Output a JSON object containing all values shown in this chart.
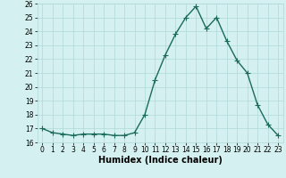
{
  "x": [
    0,
    1,
    2,
    3,
    4,
    5,
    6,
    7,
    8,
    9,
    10,
    11,
    12,
    13,
    14,
    15,
    16,
    17,
    18,
    19,
    20,
    21,
    22,
    23
  ],
  "y": [
    17.0,
    16.7,
    16.6,
    16.5,
    16.6,
    16.6,
    16.6,
    16.5,
    16.5,
    16.7,
    18.0,
    20.5,
    22.3,
    23.8,
    25.0,
    25.8,
    24.2,
    25.0,
    23.3,
    21.9,
    21.0,
    18.7,
    17.3,
    16.5
  ],
  "line_color": "#1a6b5a",
  "marker": "+",
  "markersize": 4,
  "linewidth": 1.0,
  "bg_color": "#d4f0f0",
  "grid_color": "#b0d8d8",
  "xlabel": "Humidex (Indice chaleur)",
  "xlim": [
    -0.5,
    23.5
  ],
  "ylim": [
    16,
    26
  ],
  "yticks": [
    16,
    17,
    18,
    19,
    20,
    21,
    22,
    23,
    24,
    25,
    26
  ],
  "xticks": [
    0,
    1,
    2,
    3,
    4,
    5,
    6,
    7,
    8,
    9,
    10,
    11,
    12,
    13,
    14,
    15,
    16,
    17,
    18,
    19,
    20,
    21,
    22,
    23
  ],
  "tick_fontsize": 5.5,
  "xlabel_fontsize": 7.0
}
